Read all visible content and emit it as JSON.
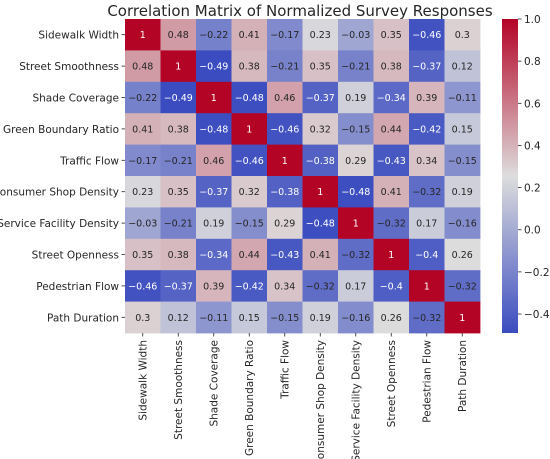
{
  "chart_data": {
    "type": "heatmap",
    "title": "Correlation Matrix of Normalized Survey Responses",
    "rows": [
      "Sidewalk Width",
      "Street Smoothness",
      "Shade Coverage",
      "Green Boundary Ratio",
      "Traffic Flow",
      "Consumer Shop Density",
      "Service Facility Density",
      "Street Openness",
      "Pedestrian Flow",
      "Path Duration"
    ],
    "columns": [
      "Sidewalk Width",
      "Street Smoothness",
      "Shade Coverage",
      "Green Boundary Ratio",
      "Traffic Flow",
      "Consumer Shop Density",
      "Service Facility Density",
      "Street Openness",
      "Pedestrian Flow",
      "Path Duration"
    ],
    "values": [
      [
        1,
        0.48,
        -0.22,
        0.41,
        -0.17,
        0.23,
        -0.03,
        0.35,
        -0.46,
        0.3
      ],
      [
        0.48,
        1,
        -0.49,
        0.38,
        -0.21,
        0.35,
        -0.21,
        0.38,
        -0.37,
        0.12
      ],
      [
        -0.22,
        -0.49,
        1,
        -0.48,
        0.46,
        -0.37,
        0.19,
        -0.34,
        0.39,
        -0.11
      ],
      [
        0.41,
        0.38,
        -0.48,
        1,
        -0.46,
        0.32,
        -0.15,
        0.44,
        -0.42,
        0.15
      ],
      [
        -0.17,
        -0.21,
        0.46,
        -0.46,
        1,
        -0.38,
        0.29,
        -0.43,
        0.34,
        -0.15
      ],
      [
        0.23,
        0.35,
        -0.37,
        0.32,
        -0.38,
        1,
        -0.48,
        0.41,
        -0.32,
        0.19
      ],
      [
        -0.03,
        -0.21,
        0.19,
        -0.15,
        0.29,
        -0.48,
        1,
        -0.32,
        0.17,
        -0.16
      ],
      [
        0.35,
        0.38,
        -0.34,
        0.44,
        -0.43,
        0.41,
        -0.32,
        1,
        -0.4,
        0.26
      ],
      [
        -0.46,
        -0.37,
        0.39,
        -0.42,
        0.34,
        -0.32,
        0.17,
        -0.4,
        1,
        -0.32
      ],
      [
        0.3,
        0.12,
        -0.11,
        0.15,
        -0.15,
        0.19,
        -0.16,
        0.26,
        -0.32,
        1
      ]
    ],
    "colorbar": {
      "min": -0.49,
      "max": 1,
      "ticks": [
        -0.4,
        -0.2,
        0.0,
        0.2,
        0.4,
        0.6,
        0.8,
        1.0
      ],
      "tick_labels": [
        "−0.4",
        "−0.2",
        "0.0",
        "0.2",
        "0.4",
        "0.6",
        "0.8",
        "1.0"
      ]
    },
    "colormap": {
      "name": "coolwarm",
      "low": "#3b4cc0",
      "mid": "#dddddd",
      "high": "#b40426"
    }
  }
}
